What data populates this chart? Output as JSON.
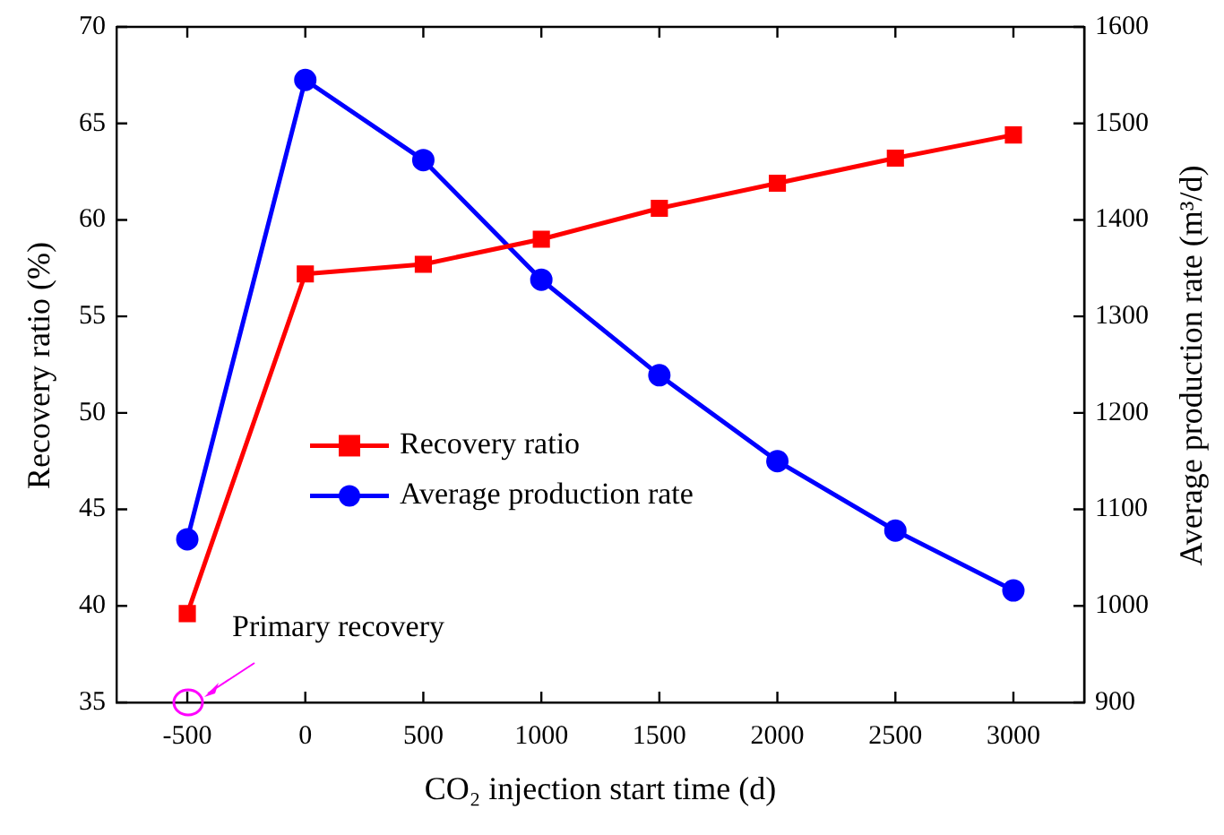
{
  "chart_data": {
    "type": "line",
    "xlabel": "CO₂ injection start time (d)",
    "ylabel": "Recovery ratio (%)",
    "y2label": "Average production rate (m³/d)",
    "x": [
      -500,
      0,
      500,
      1000,
      1500,
      2000,
      2500,
      3000
    ],
    "series": [
      {
        "name": "Recovery ratio",
        "color": "#ff0000",
        "marker": "square",
        "values": [
          39.6,
          57.2,
          57.7,
          59.0,
          60.6,
          61.9,
          63.2,
          64.4
        ]
      },
      {
        "name": "Average production rate",
        "color": "#0000ff",
        "marker": "circle",
        "axis": "y2",
        "values": [
          1069,
          1545,
          1462,
          1338,
          1239,
          1150,
          1078,
          1016
        ]
      }
    ],
    "xlim": [
      -800,
      3300
    ],
    "xticks": [
      -500,
      0,
      500,
      1000,
      1500,
      2000,
      2500,
      3000
    ],
    "ylim": [
      35,
      70
    ],
    "yticks": [
      35,
      40,
      45,
      50,
      55,
      60,
      65,
      70
    ],
    "y2lim": [
      900,
      1600
    ],
    "y2ticks": [
      900,
      1000,
      1100,
      1200,
      1300,
      1400,
      1500,
      1600
    ],
    "annotations": [
      {
        "text": "Primary recovery",
        "x": -500,
        "y": 35
      }
    ],
    "legend": "center left",
    "grid": false,
    "line_style": "solid"
  }
}
